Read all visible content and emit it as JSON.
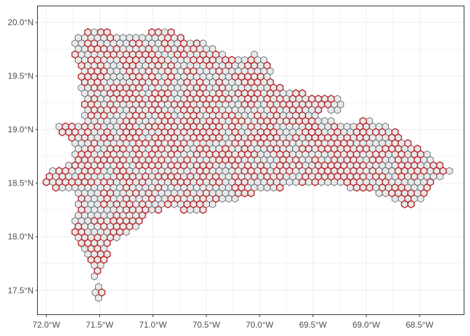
{
  "colors": {
    "background": "#ffffff",
    "panel_border": "#333333",
    "grid": "#ebebeb",
    "axis_text": "#4d4d4d",
    "hex_fill": "#e9e9e9",
    "hex_stroke": "#4d5965",
    "region_stroke": "#b5262b"
  },
  "axes": {
    "x": {
      "ticks": [
        {
          "value": -72.0,
          "label": "72.0°W"
        },
        {
          "value": -71.5,
          "label": "71.5°W"
        },
        {
          "value": -71.0,
          "label": "71.0°W"
        },
        {
          "value": -70.5,
          "label": "70.5°W"
        },
        {
          "value": -70.0,
          "label": "70.0°W"
        },
        {
          "value": -69.5,
          "label": "69.5°W"
        },
        {
          "value": -69.0,
          "label": "69.0°W"
        },
        {
          "value": -68.5,
          "label": "68.5°W"
        }
      ]
    },
    "y": {
      "ticks": [
        {
          "value": 17.5,
          "label": "17.5°N"
        },
        {
          "value": 18.0,
          "label": "18.0°N"
        },
        {
          "value": 18.5,
          "label": "18.5°N"
        },
        {
          "value": 19.0,
          "label": "19.0°N"
        },
        {
          "value": 19.5,
          "label": "19.5°N"
        },
        {
          "value": 20.0,
          "label": "20.0°N"
        }
      ]
    }
  },
  "map": {
    "type": "hexagonal grid",
    "lon_range": [
      -72.08,
      -68.08
    ],
    "lat_range": [
      17.27,
      20.15
    ],
    "hex_spacing_deg": 0.06,
    "landmass_lon_lat": [
      [
        -71.7,
        19.89
      ],
      [
        -71.5,
        19.96
      ],
      [
        -71.3,
        19.86
      ],
      [
        -71.05,
        19.91
      ],
      [
        -70.9,
        19.95
      ],
      [
        -70.7,
        19.84
      ],
      [
        -70.5,
        19.8
      ],
      [
        -70.25,
        19.67
      ],
      [
        -70.05,
        19.71
      ],
      [
        -69.9,
        19.64
      ],
      [
        -69.88,
        19.44
      ],
      [
        -69.65,
        19.35
      ],
      [
        -69.45,
        19.32
      ],
      [
        -69.25,
        19.33
      ],
      [
        -69.22,
        19.18
      ],
      [
        -69.4,
        19.16
      ],
      [
        -69.25,
        19.04
      ],
      [
        -69.0,
        19.1
      ],
      [
        -68.85,
        19.05
      ],
      [
        -68.6,
        18.9
      ],
      [
        -68.4,
        18.75
      ],
      [
        -68.2,
        18.62
      ],
      [
        -68.4,
        18.5
      ],
      [
        -68.5,
        18.33
      ],
      [
        -68.65,
        18.27
      ],
      [
        -68.8,
        18.38
      ],
      [
        -69.2,
        18.46
      ],
      [
        -69.6,
        18.47
      ],
      [
        -69.9,
        18.45
      ],
      [
        -70.1,
        18.38
      ],
      [
        -70.4,
        18.3
      ],
      [
        -70.6,
        18.2
      ],
      [
        -70.85,
        18.28
      ],
      [
        -71.05,
        18.2
      ],
      [
        -71.1,
        18.12
      ],
      [
        -71.4,
        17.95
      ],
      [
        -71.45,
        17.75
      ],
      [
        -71.55,
        17.62
      ],
      [
        -71.6,
        17.75
      ],
      [
        -71.72,
        17.95
      ],
      [
        -71.75,
        18.1
      ],
      [
        -71.7,
        18.3
      ],
      [
        -71.75,
        18.43
      ],
      [
        -71.9,
        18.45
      ],
      [
        -72.02,
        18.5
      ],
      [
        -71.97,
        18.62
      ],
      [
        -71.75,
        18.7
      ],
      [
        -71.75,
        18.85
      ],
      [
        -71.8,
        18.95
      ],
      [
        -71.95,
        18.99
      ],
      [
        -71.88,
        19.04
      ],
      [
        -71.65,
        19.05
      ],
      [
        -71.65,
        19.2
      ],
      [
        -71.68,
        19.35
      ],
      [
        -71.7,
        19.6
      ],
      [
        -71.78,
        19.83
      ]
    ],
    "islet_lon_lat": [
      -71.54,
      17.48
    ],
    "excluded_lake_lon_lat": [
      -69.38,
      19.15
    ]
  }
}
